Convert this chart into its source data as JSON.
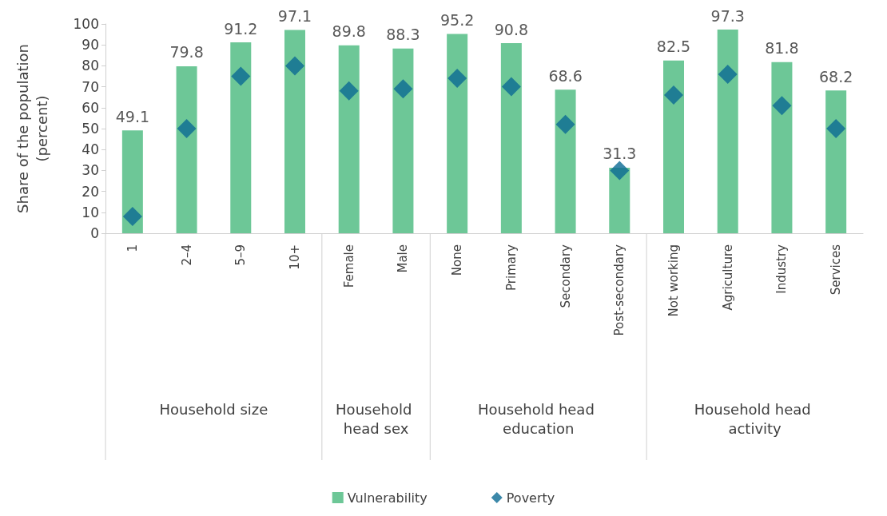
{
  "chart_data": {
    "type": "bar",
    "ylabel": "Share of the population (percent)",
    "categories": [
      "1",
      "2–4",
      "5–9",
      "10+",
      "Female",
      "Male",
      "None",
      "Primary",
      "Secondary",
      "Post-secondary",
      "Not working",
      "Agriculture",
      "Industry",
      "Services"
    ],
    "series": [
      {
        "name": "Vulnerability",
        "color": "#6dc797",
        "values": [
          49.1,
          79.8,
          91.2,
          97.1,
          89.8,
          88.3,
          95.2,
          90.8,
          68.6,
          31.3,
          82.5,
          97.3,
          81.8,
          68.2
        ],
        "value_labels": [
          "49.1",
          "79.8",
          "91.2",
          "97.1",
          "89.8",
          "88.3",
          "95.2",
          "90.8",
          "68.6",
          "31.3",
          "82.5",
          "97.3",
          "81.8",
          "68.2"
        ]
      },
      {
        "name": "Poverty",
        "type": "scatter",
        "marker": "diamond",
        "color": "#0b6a94",
        "values": [
          8,
          50,
          75,
          80,
          68,
          69,
          74,
          70,
          52,
          30,
          66,
          76,
          61,
          50
        ]
      }
    ],
    "annotations": [
      "Household size",
      "Household head sex",
      "Household head education",
      "Household head activity"
    ],
    "ylim": [
      0,
      100
    ],
    "yticks": [
      0,
      10,
      20,
      30,
      40,
      50,
      60,
      70,
      80,
      90,
      100
    ],
    "grid": false,
    "legend": "bottom"
  }
}
